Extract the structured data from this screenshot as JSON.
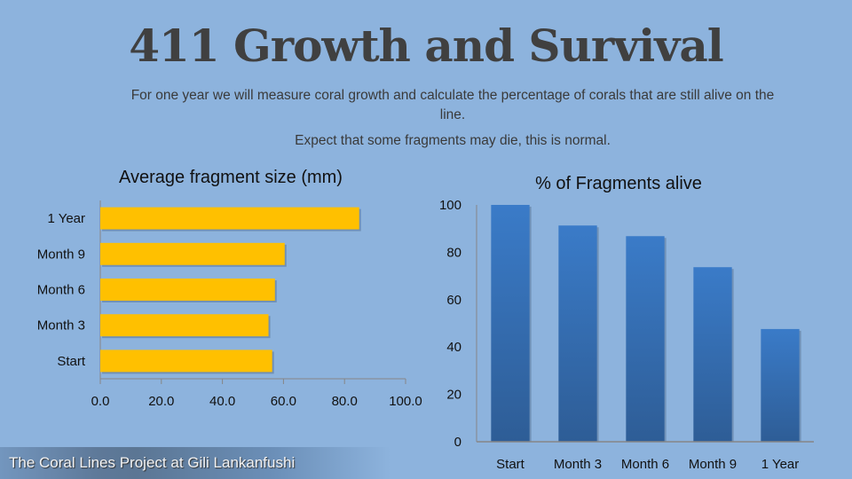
{
  "slide": {
    "title": "411 Growth and Survival",
    "subtitle_line1": "For one year we will measure coral growth and calculate the percentage of corals that are still alive on the line.",
    "subtitle_line2": "Expect that some fragments may die, this is normal.",
    "footer": "The Coral Lines Project at Gili Lankanfushi"
  },
  "colors": {
    "background": "#8db3dd",
    "bar_size": "#ffc000",
    "bar_alive_top": "#3a7bc8",
    "bar_alive_bottom": "#2e5d96",
    "axis": "#868686"
  },
  "chart_data": [
    {
      "type": "bar",
      "orientation": "horizontal",
      "title": "Average fragment size (mm)",
      "categories": [
        "Start",
        "Month 3",
        "Month 6",
        "Month 9",
        "1 Year"
      ],
      "values": [
        56.3,
        55.1,
        57.2,
        60.4,
        84.8
      ],
      "xlim": [
        0,
        100
      ],
      "xticks": [
        "0.0",
        "20.0",
        "40.0",
        "60.0",
        "80.0",
        "100.0"
      ],
      "xlabel": "",
      "ylabel": "",
      "grid": false,
      "legend": "none"
    },
    {
      "type": "bar",
      "orientation": "vertical",
      "title": "% of Fragments alive",
      "categories": [
        "Start",
        "Month 3",
        "Month 6",
        "Month 9",
        "1 Year"
      ],
      "values": [
        100,
        91.3,
        86.8,
        73.7,
        47.6
      ],
      "ylim": [
        0,
        100
      ],
      "yticks": [
        "0",
        "20",
        "40",
        "60",
        "80",
        "100"
      ],
      "xlabel": "",
      "ylabel": "",
      "grid": false,
      "legend": "none"
    }
  ]
}
